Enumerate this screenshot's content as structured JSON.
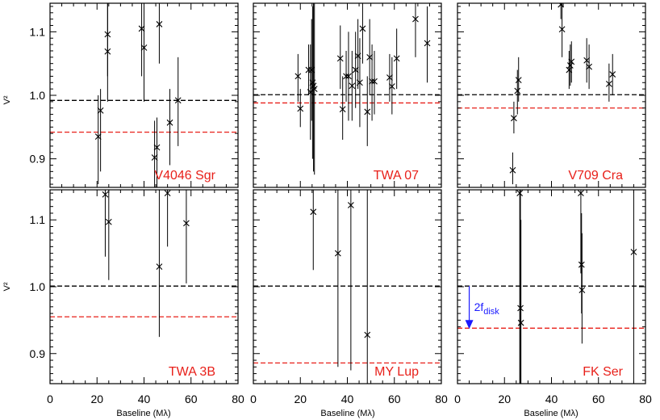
{
  "chart_data": {
    "type": "scatter",
    "shared": {
      "xlabel": "Baseline (Mλ)",
      "ylabel": "V²",
      "xlim": [
        0,
        80
      ],
      "ylim": [
        0.855,
        1.145
      ],
      "xticks": [
        0,
        20,
        40,
        60,
        80
      ],
      "yticks": [
        0.9,
        1.0,
        1.1
      ],
      "grid": false,
      "colors": {
        "points": "#000000",
        "reference": "#000000",
        "disk_level": "#e8201a",
        "label": "#e8201a",
        "annotation": "#1a1aff"
      }
    },
    "panels": [
      {
        "label": "V4046 Sgr",
        "reference_v2": 0.992,
        "disk_level_v2": 0.942,
        "points": [
          {
            "x": 20.5,
            "y": 0.935,
            "lo": 0.86,
            "hi": 1.0
          },
          {
            "x": 21.5,
            "y": 0.976,
            "lo": 0.88,
            "hi": 1.01
          },
          {
            "x": 24.5,
            "y": 1.096,
            "lo": 1.03,
            "hi": 1.145
          },
          {
            "x": 24.5,
            "y": 1.069,
            "lo": 0.99,
            "hi": 1.145
          },
          {
            "x": 39.0,
            "y": 1.105,
            "lo": 1.03,
            "hi": 1.145
          },
          {
            "x": 40.0,
            "y": 1.075,
            "lo": 0.99,
            "hi": 1.145
          },
          {
            "x": 44.5,
            "y": 0.902,
            "lo": 0.855,
            "hi": 0.96
          },
          {
            "x": 45.5,
            "y": 0.918,
            "lo": 0.855,
            "hi": 0.965
          },
          {
            "x": 46.5,
            "y": 1.112,
            "lo": 1.05,
            "hi": 1.145
          },
          {
            "x": 51.0,
            "y": 0.957,
            "lo": 0.89,
            "hi": 1.01
          },
          {
            "x": 54.5,
            "y": 0.992,
            "lo": 0.92,
            "hi": 1.06
          }
        ]
      },
      {
        "label": "TWA 07",
        "reference_v2": 1.001,
        "disk_level_v2": 0.988,
        "points": [
          {
            "x": 19.0,
            "y": 1.03,
            "lo": 0.99,
            "hi": 1.065
          },
          {
            "x": 20.0,
            "y": 0.979,
            "lo": 0.95,
            "hi": 1.01
          },
          {
            "x": 23.5,
            "y": 1.04,
            "lo": 1.0,
            "hi": 1.08
          },
          {
            "x": 24.3,
            "y": 1.005,
            "lo": 0.93,
            "hi": 1.08
          },
          {
            "x": 24.8,
            "y": 1.04,
            "lo": 0.96,
            "hi": 1.12
          },
          {
            "x": 25.2,
            "y": 1.02,
            "lo": 0.9,
            "hi": 1.14
          },
          {
            "x": 25.6,
            "y": 1.015,
            "lo": 0.88,
            "hi": 1.145
          },
          {
            "x": 26.0,
            "y": 1.01,
            "lo": 0.875,
            "hi": 1.145
          },
          {
            "x": 37.0,
            "y": 1.058,
            "lo": 1.01,
            "hi": 1.11
          },
          {
            "x": 38.0,
            "y": 0.978,
            "lo": 0.93,
            "hi": 1.03
          },
          {
            "x": 39.5,
            "y": 1.03,
            "lo": 0.99,
            "hi": 1.07
          },
          {
            "x": 40.5,
            "y": 1.03,
            "lo": 0.96,
            "hi": 1.1
          },
          {
            "x": 42.0,
            "y": 1.015,
            "lo": 0.96,
            "hi": 1.07
          },
          {
            "x": 43.5,
            "y": 1.04,
            "lo": 0.98,
            "hi": 1.1
          },
          {
            "x": 44.5,
            "y": 1.062,
            "lo": 1.01,
            "hi": 1.12
          },
          {
            "x": 45.3,
            "y": 1.02,
            "lo": 0.95,
            "hi": 1.09
          },
          {
            "x": 46.5,
            "y": 1.105,
            "lo": 1.05,
            "hi": 1.145
          },
          {
            "x": 48.5,
            "y": 0.974,
            "lo": 0.92,
            "hi": 1.03
          },
          {
            "x": 49.5,
            "y": 1.06,
            "lo": 1.0,
            "hi": 1.12
          },
          {
            "x": 50.5,
            "y": 1.022,
            "lo": 0.96,
            "hi": 1.08
          },
          {
            "x": 51.5,
            "y": 1.022,
            "lo": 0.97,
            "hi": 1.07
          },
          {
            "x": 58.0,
            "y": 1.028,
            "lo": 0.99,
            "hi": 1.065
          },
          {
            "x": 59.0,
            "y": 1.014,
            "lo": 0.97,
            "hi": 1.06
          },
          {
            "x": 61.0,
            "y": 1.058,
            "lo": 1.01,
            "hi": 1.105
          },
          {
            "x": 69.0,
            "y": 1.12,
            "lo": 1.06,
            "hi": 1.145
          },
          {
            "x": 74.0,
            "y": 1.082,
            "lo": 1.02,
            "hi": 1.14
          }
        ]
      },
      {
        "label": "V709 Cra",
        "reference_v2": 1.001,
        "disk_level_v2": 0.98,
        "points": [
          {
            "x": 23.5,
            "y": 0.882,
            "lo": 0.86,
            "hi": 0.91
          },
          {
            "x": 24.0,
            "y": 0.964,
            "lo": 0.94,
            "hi": 0.99
          },
          {
            "x": 25.5,
            "y": 1.007,
            "lo": 0.97,
            "hi": 1.04
          },
          {
            "x": 26.0,
            "y": 1.024,
            "lo": 0.99,
            "hi": 1.06
          },
          {
            "x": 44.0,
            "y": 1.143,
            "lo": 1.12,
            "hi": 1.145
          },
          {
            "x": 44.5,
            "y": 1.104,
            "lo": 1.06,
            "hi": 1.145
          },
          {
            "x": 47.5,
            "y": 1.04,
            "lo": 1.01,
            "hi": 1.07
          },
          {
            "x": 48.0,
            "y": 1.047,
            "lo": 1.015,
            "hi": 1.08
          },
          {
            "x": 48.5,
            "y": 1.053,
            "lo": 1.02,
            "hi": 1.085
          },
          {
            "x": 55.0,
            "y": 1.055,
            "lo": 1.02,
            "hi": 1.09
          },
          {
            "x": 56.0,
            "y": 1.045,
            "lo": 1.01,
            "hi": 1.08
          },
          {
            "x": 64.5,
            "y": 1.018,
            "lo": 0.99,
            "hi": 1.05
          },
          {
            "x": 66.0,
            "y": 1.033,
            "lo": 1.0,
            "hi": 1.065
          }
        ]
      },
      {
        "label": "TWA 3B",
        "reference_v2": 1.001,
        "disk_level_v2": 0.955,
        "points": [
          {
            "x": 23.5,
            "y": 1.138,
            "lo": 1.045,
            "hi": 1.145
          },
          {
            "x": 25.0,
            "y": 1.097,
            "lo": 1.01,
            "hi": 1.145
          },
          {
            "x": 46.5,
            "y": 1.03,
            "lo": 0.925,
            "hi": 1.145
          },
          {
            "x": 50.0,
            "y": 1.14,
            "lo": 1.06,
            "hi": 1.145
          },
          {
            "x": 58.0,
            "y": 1.095,
            "lo": 1.005,
            "hi": 1.145
          }
        ]
      },
      {
        "label": "MY Lup",
        "reference_v2": 1.001,
        "disk_level_v2": 0.886,
        "points": [
          {
            "x": 25.5,
            "y": 1.112,
            "lo": 1.025,
            "hi": 1.145
          },
          {
            "x": 36.0,
            "y": 1.05,
            "lo": 0.88,
            "hi": 1.145
          },
          {
            "x": 41.5,
            "y": 1.122,
            "lo": 0.875,
            "hi": 1.145
          },
          {
            "x": 48.5,
            "y": 0.928,
            "lo": 0.855,
            "hi": 1.145
          }
        ]
      },
      {
        "label": "FK Ser",
        "reference_v2": 1.001,
        "disk_level_v2": 0.938,
        "annotation": {
          "text": "2f",
          "subscript": "disk",
          "x": 5.0,
          "from_v2": 1.001,
          "to_v2": 0.938
        },
        "points": [
          {
            "x": 26.5,
            "y": 1.14,
            "lo": 0.855,
            "hi": 1.145
          },
          {
            "x": 26.8,
            "y": 0.968,
            "lo": 0.855,
            "hi": 1.145
          },
          {
            "x": 27.0,
            "y": 0.946,
            "lo": 0.855,
            "hi": 1.1
          },
          {
            "x": 52.5,
            "y": 1.14,
            "lo": 1.02,
            "hi": 1.145
          },
          {
            "x": 52.8,
            "y": 1.033,
            "lo": 0.96,
            "hi": 1.11
          },
          {
            "x": 53.0,
            "y": 0.995,
            "lo": 0.915,
            "hi": 1.08
          },
          {
            "x": 75.0,
            "y": 1.052,
            "lo": 0.855,
            "hi": 1.145
          }
        ]
      }
    ]
  }
}
